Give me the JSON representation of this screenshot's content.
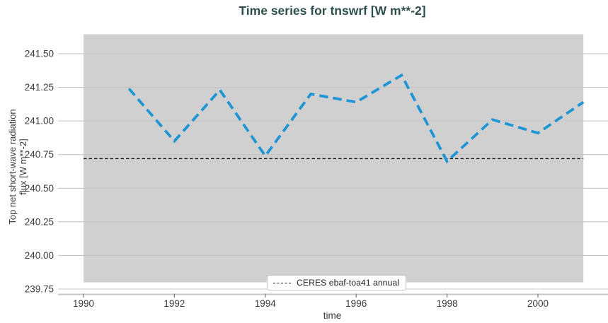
{
  "header": {
    "title": "Time series for tnswrf [W m**-2]"
  },
  "axes": {
    "xlabel": "time",
    "ylabel_line1": "Top net short-wave radiation",
    "ylabel_line2": "flux [W m**-2]"
  },
  "legend": {
    "ref_label": "CERES ebaf-toa41 annual"
  },
  "colors": {
    "title": "#2f4f4f",
    "series": "#2095d4",
    "reference": "#1c1c1c",
    "band": "#d0d0d0",
    "grid": "#c4c4c4",
    "spine": "#c8c8c8",
    "tick_mark": "#787878",
    "tick_text": "#3b3b3b"
  },
  "chart_data": {
    "type": "line",
    "title": "Time series for tnswrf [W m**-2]",
    "xlabel": "time",
    "ylabel": "Top net short-wave radiation flux [W m**-2]",
    "x": [
      1991,
      1992,
      1993,
      1994,
      1995,
      1996,
      1997,
      1998,
      1999,
      2000,
      2001
    ],
    "series": [
      {
        "name": "tnswrf",
        "color": "#2095d4",
        "linestyle": "dashed",
        "values": [
          241.24,
          240.85,
          241.23,
          240.74,
          241.2,
          241.14,
          241.34,
          240.7,
          241.01,
          240.91,
          241.14
        ]
      }
    ],
    "reference_line": {
      "label": "CERES ebaf-toa41 annual",
      "value": 240.72,
      "color": "#1c1c1c",
      "linestyle": "dashed",
      "x_range": [
        1990,
        2001
      ]
    },
    "highlight_band": {
      "x_range": [
        1990,
        2001
      ],
      "color": "#d0d0d0"
    },
    "xticks": [
      1990,
      1992,
      1994,
      1996,
      1998,
      2000
    ],
    "yticks": [
      239.75,
      240.0,
      240.25,
      240.5,
      240.75,
      241.0,
      241.25,
      241.5
    ],
    "xlim": [
      1989.44,
      2001.54
    ],
    "ylim": [
      239.71,
      241.67
    ],
    "grid": "horizontal",
    "legend_position": "lower center"
  }
}
